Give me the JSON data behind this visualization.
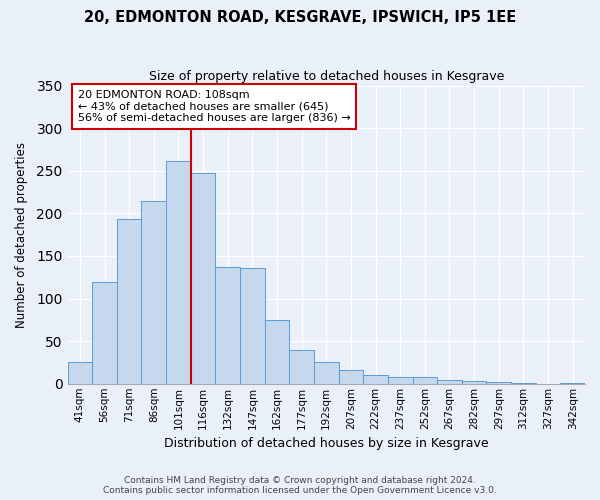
{
  "title": "20, EDMONTON ROAD, KESGRAVE, IPSWICH, IP5 1EE",
  "subtitle": "Size of property relative to detached houses in Kesgrave",
  "xlabel": "Distribution of detached houses by size in Kesgrave",
  "ylabel": "Number of detached properties",
  "bin_labels": [
    "41sqm",
    "56sqm",
    "71sqm",
    "86sqm",
    "101sqm",
    "116sqm",
    "132sqm",
    "147sqm",
    "162sqm",
    "177sqm",
    "192sqm",
    "207sqm",
    "222sqm",
    "237sqm",
    "252sqm",
    "267sqm",
    "282sqm",
    "297sqm",
    "312sqm",
    "327sqm",
    "342sqm"
  ],
  "bin_values": [
    25,
    120,
    193,
    214,
    261,
    247,
    137,
    136,
    75,
    40,
    25,
    16,
    10,
    8,
    8,
    5,
    3,
    2,
    1,
    0,
    1
  ],
  "bar_color": "#c5d8ed",
  "bar_edge_color": "#5b9bd5",
  "vline_color": "#cc0000",
  "annotation_title": "20 EDMONTON ROAD: 108sqm",
  "annotation_line1": "← 43% of detached houses are smaller (645)",
  "annotation_line2": "56% of semi-detached houses are larger (836) →",
  "annotation_box_color": "#ffffff",
  "annotation_box_edge": "#cc0000",
  "ylim": [
    0,
    350
  ],
  "yticks": [
    0,
    50,
    100,
    150,
    200,
    250,
    300,
    350
  ],
  "footer1": "Contains HM Land Registry data © Crown copyright and database right 2024.",
  "footer2": "Contains public sector information licensed under the Open Government Licence v3.0.",
  "bg_color": "#eaf0f8",
  "plot_bg_color": "#eaf0f8"
}
